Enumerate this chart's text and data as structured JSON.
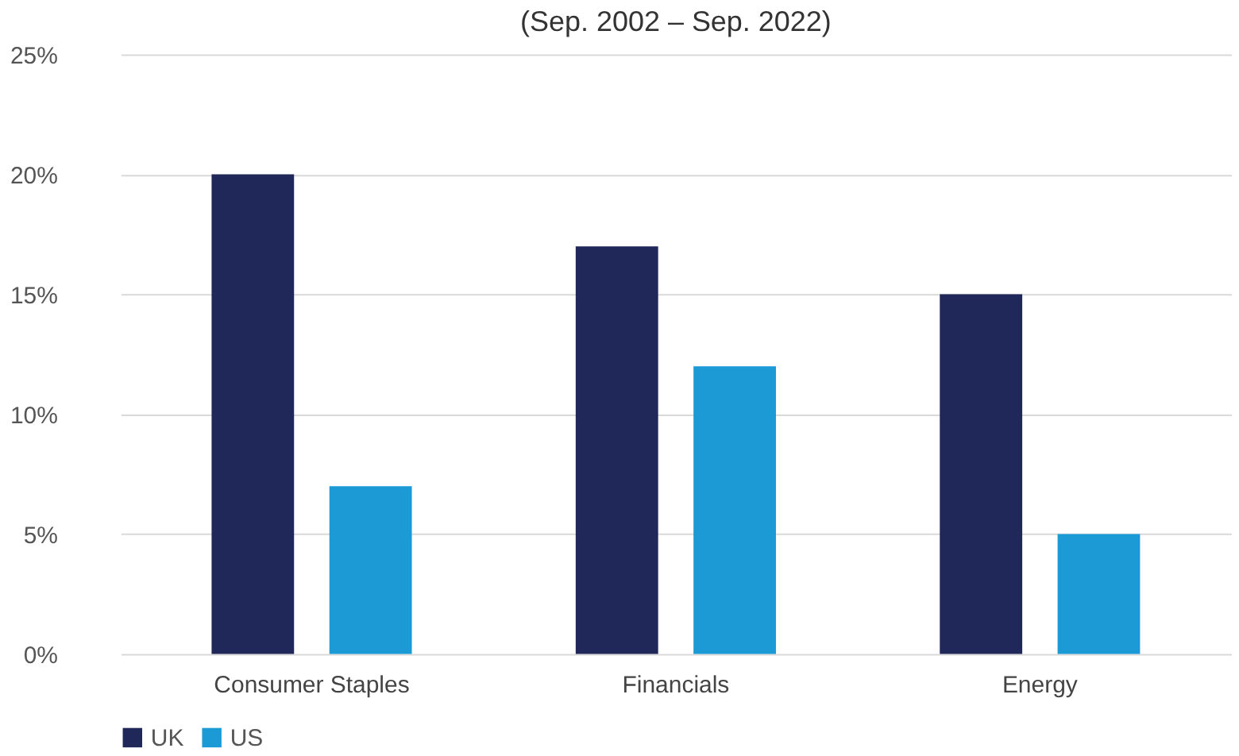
{
  "chart_data": {
    "type": "bar",
    "title": "(Sep. 2002 – Sep. 2022)",
    "categories": [
      "Consumer Staples",
      "Financials",
      "Energy"
    ],
    "series": [
      {
        "name": "UK",
        "color": "#1f2859",
        "values": [
          20,
          17,
          15
        ]
      },
      {
        "name": "US",
        "color": "#1b9ad6",
        "values": [
          7,
          12,
          5
        ]
      }
    ],
    "ylim": [
      0,
      25
    ],
    "yticks": [
      {
        "value": 0,
        "label": "0%"
      },
      {
        "value": 5,
        "label": "5%"
      },
      {
        "value": 10,
        "label": "10%"
      },
      {
        "value": 15,
        "label": "15%"
      },
      {
        "value": 20,
        "label": "20%"
      },
      {
        "value": 25,
        "label": "25%"
      }
    ],
    "grid": "y",
    "legend": "bottom"
  }
}
